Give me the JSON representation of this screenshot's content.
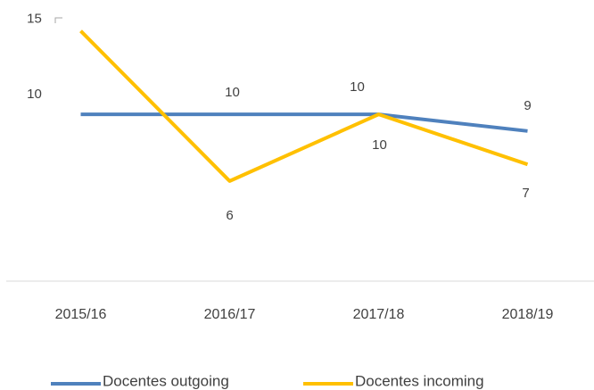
{
  "chart_data": {
    "type": "line",
    "categories": [
      "2015/16",
      "2016/17",
      "2017/18",
      "2018/19"
    ],
    "series": [
      {
        "name": "Docentes outgoing",
        "color": "#4f81bd",
        "values": [
          10,
          10,
          10,
          9
        ]
      },
      {
        "name": "Docentes incoming",
        "color": "#ffc000",
        "values": [
          15,
          6,
          10,
          7
        ]
      }
    ],
    "ylim": [
      0,
      16
    ]
  }
}
